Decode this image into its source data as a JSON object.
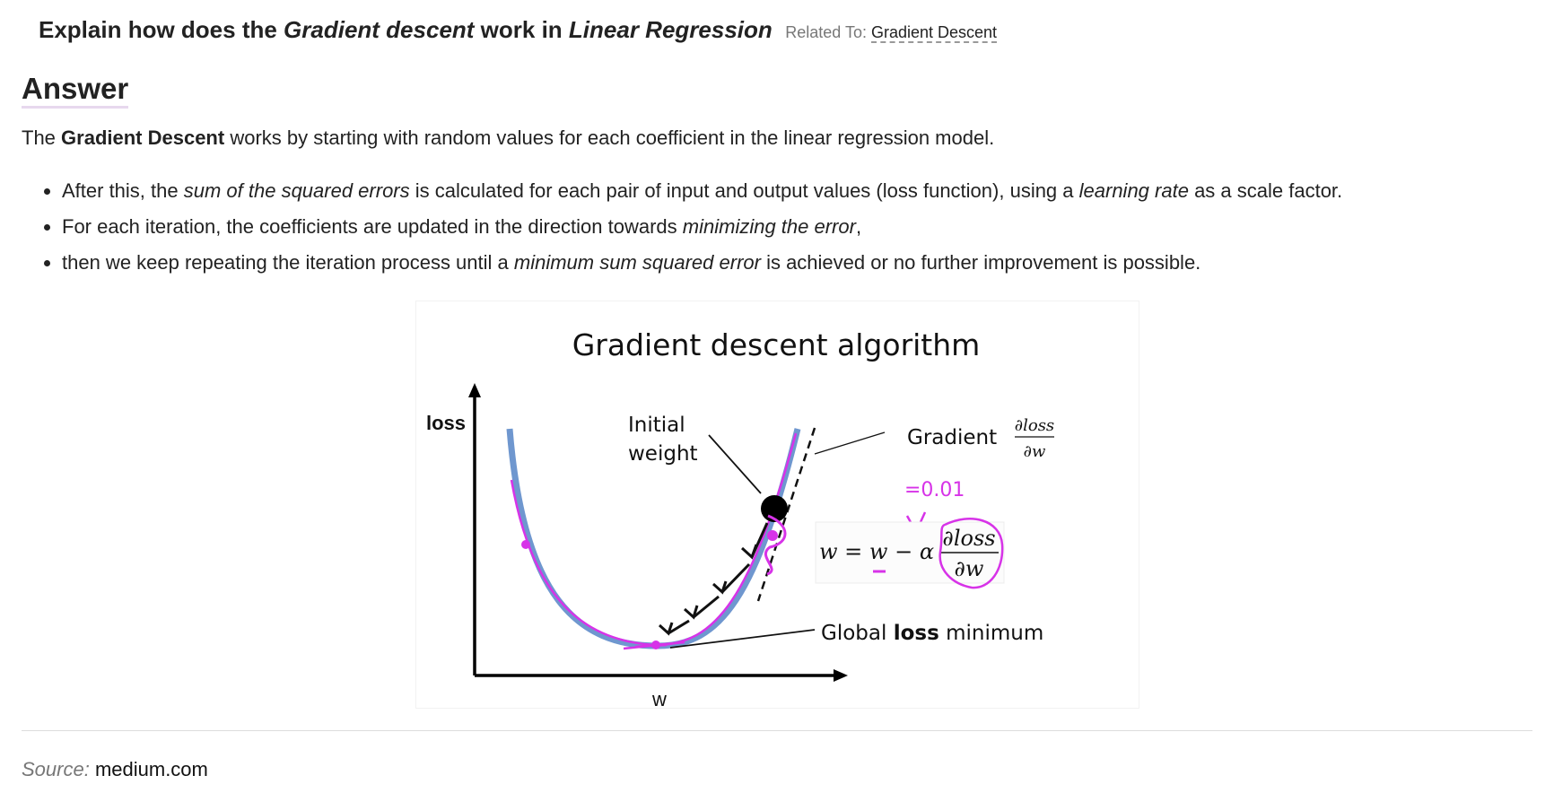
{
  "question": {
    "prefix": "Explain how does the ",
    "em1": "Gradient descent",
    "middle": " work in ",
    "em2": "Linear Regression",
    "related_label": "Related To:",
    "related_link": "Gradient Descent"
  },
  "answer": {
    "heading": "Answer",
    "intro_prefix": "The ",
    "intro_bold": "Gradient Descent",
    "intro_suffix": " works by starting with random values for each coefficient in the linear regression model.",
    "bullets": [
      {
        "p1": "After this, the ",
        "em1": "sum of the squared errors",
        "p2": " is calculated for each pair of input and output values (loss function), using a ",
        "em2": "learning rate",
        "p3": " as a scale factor."
      },
      {
        "p1": "For each iteration, the coefficients are updated in the direction towards ",
        "em1": "minimizing the error",
        "p2": ","
      },
      {
        "p1": "then we keep repeating the iteration process until a ",
        "em1": "minimum sum squared error",
        "p2": " is achieved or no further improvement is possible."
      }
    ]
  },
  "figure": {
    "title": "Gradient descent algorithm",
    "y_axis_label": "loss",
    "x_axis_label": "w",
    "initial_weight_line1": "Initial",
    "initial_weight_line2": "weight",
    "gradient_label": "Gradient",
    "gradient_num": "∂loss",
    "gradient_den": "∂w",
    "annotation_alpha": "=0.01",
    "update_rule_lhs": "w = w − α",
    "update_rule_num": "∂loss",
    "update_rule_den": "∂w",
    "global_prefix": "Global ",
    "global_bold": "loss",
    "global_suffix": " minimum",
    "curve_color": "#6f97cf",
    "annotation_color": "#d733e8"
  },
  "source": {
    "label": "Source:",
    "value": "medium.com"
  }
}
